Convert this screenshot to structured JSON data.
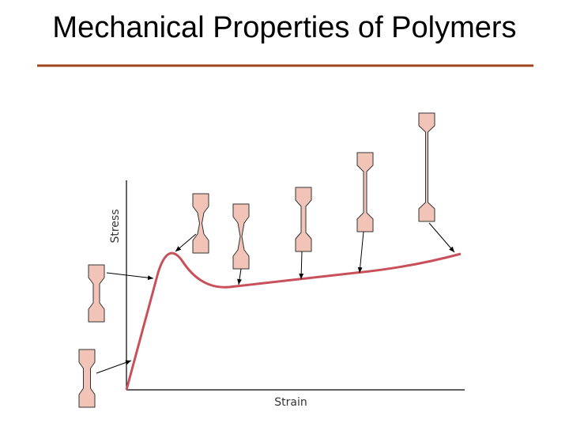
{
  "title": "Mechanical Properties of Polymers",
  "diagram": {
    "y_axis_label": "Stress",
    "x_axis_label": "Strain"
  }
}
